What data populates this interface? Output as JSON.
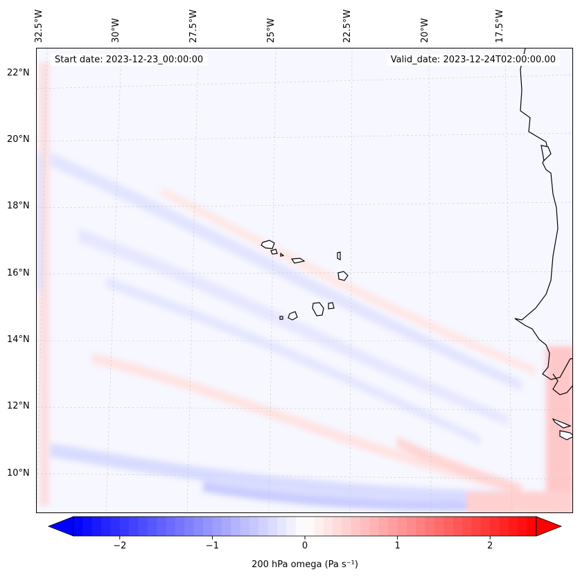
{
  "map": {
    "title_left": "Start date: 2023-12-23_00:00:00",
    "title_right": "Valid_date: 2023-12-24T02:00:00.00",
    "longitude_labels": [
      "32.5°W",
      "30°W",
      "27.5°W",
      "25°W",
      "22.5°W",
      "20°W",
      "17.5°W"
    ],
    "latitude_labels": [
      "22°N",
      "20°N",
      "18°N",
      "16°N",
      "14°N",
      "12°N",
      "10°N"
    ],
    "extent": {
      "lon_min": -33.0,
      "lon_max": -15.5,
      "lat_min": 8.8,
      "lat_max": 22.8
    },
    "variable": "200 hPa omega",
    "land": [
      "Cape Verde islands",
      "West African coast"
    ]
  },
  "colorbar": {
    "label": "200 hPa omega (Pa s⁻¹)",
    "ticks": [
      "−2",
      "−1",
      "0",
      "1",
      "2"
    ],
    "tick_values": [
      -2,
      -1,
      0,
      1,
      2
    ],
    "range": [
      -2.5,
      2.5
    ],
    "extend": "both",
    "colors": {
      "min": "#0000ff",
      "mid": "#ffffff",
      "max": "#ff0000"
    }
  }
}
